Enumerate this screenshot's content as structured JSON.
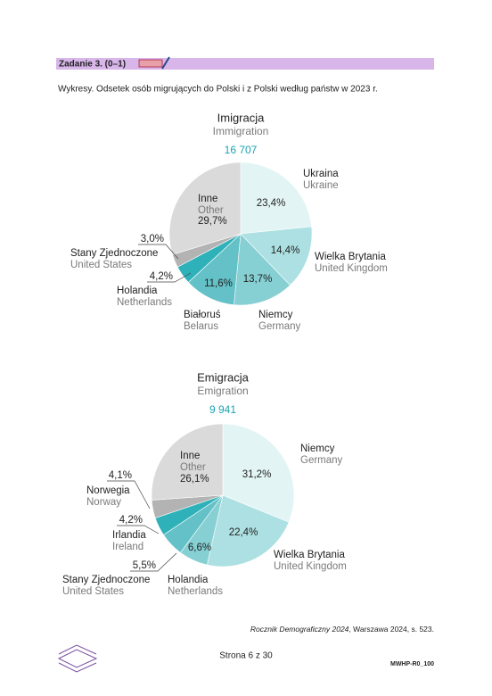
{
  "header": {
    "task": "Zadanie 3. (0–1)"
  },
  "caption": "Wykresy. Odsetek osób migrujących do Polski i z Polski według państw w 2023 r.",
  "chart_data": [
    {
      "type": "pie",
      "title": "Imigracja",
      "subtitle": "Immigration",
      "total": {
        "value": 16707,
        "label": "16 707"
      },
      "categories": [
        "Ukraina",
        "Wielka Brytania",
        "Niemcy",
        "Białoruś",
        "Holandia",
        "Stany Zjednoczone",
        "Inne"
      ],
      "categories_en": [
        "Ukraine",
        "United Kingdom",
        "Germany",
        "Belarus",
        "Netherlands",
        "United States",
        "Other"
      ],
      "values": [
        23.4,
        14.4,
        13.7,
        11.6,
        4.2,
        3.0,
        29.7
      ],
      "value_labels": [
        "23,4%",
        "14,4%",
        "13,7%",
        "11,6%",
        "4,2%",
        "3,0%",
        "29,7%"
      ],
      "colors": [
        "#e3f4f4",
        "#ade0e2",
        "#86cfd3",
        "#63c1c7",
        "#2fb1ba",
        "#b3b3b3",
        "#dadada"
      ]
    },
    {
      "type": "pie",
      "title": "Emigracja",
      "subtitle": "Emigration",
      "total": {
        "value": 9941,
        "label": "9 941"
      },
      "categories": [
        "Niemcy",
        "Wielka Brytania",
        "Holandia",
        "Stany Zjednoczone",
        "Irlandia",
        "Norwegia",
        "Inne"
      ],
      "categories_en": [
        "Germany",
        "United Kingdom",
        "Netherlands",
        "United States",
        "Ireland",
        "Norway",
        "Other"
      ],
      "values": [
        31.2,
        22.4,
        6.6,
        5.5,
        4.2,
        4.1,
        26.1
      ],
      "value_labels": [
        "31,2%",
        "22,4%",
        "6,6%",
        "5,5%",
        "4,2%",
        "4,1%",
        "26,1%"
      ],
      "colors": [
        "#e3f4f4",
        "#ade0e2",
        "#86cfd3",
        "#63c1c7",
        "#2fb1ba",
        "#b3b3b3",
        "#dadada"
      ]
    }
  ],
  "source": {
    "title": "Rocznik Demograficzny 2024",
    "rest": ", Warszawa 2024, s. 523."
  },
  "footer": {
    "page": "Strona 6 z 30",
    "code": "MWHP-R0_100"
  }
}
